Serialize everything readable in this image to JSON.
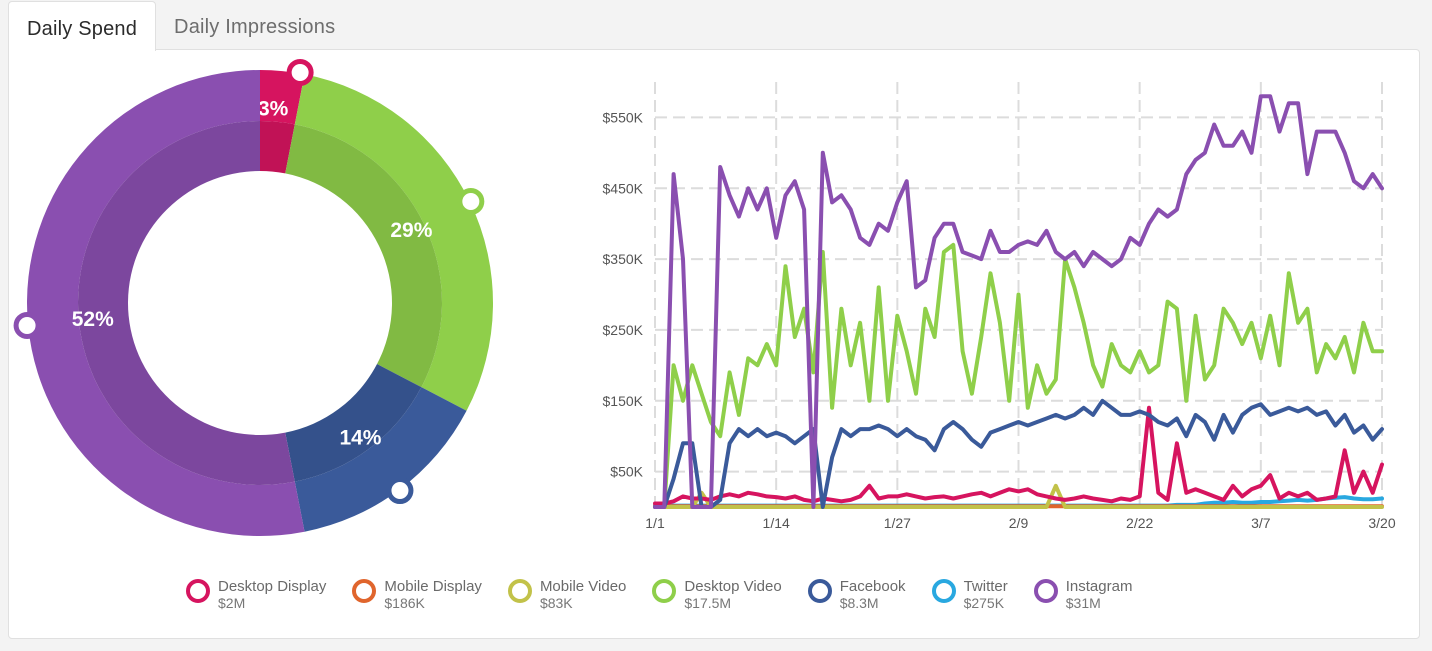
{
  "tabs": [
    {
      "label": "Daily Spend",
      "active": true
    },
    {
      "label": "Daily Impressions",
      "active": false
    }
  ],
  "colors": {
    "desktop_display": "#d6145f",
    "mobile_display": "#e0652d",
    "mobile_video": "#c2c249",
    "desktop_video": "#8fcf4a",
    "facebook": "#3a5a9a",
    "twitter": "#29a8e0",
    "instagram": "#8a4fb0"
  },
  "chart_data": [
    {
      "type": "pie",
      "title": "",
      "slices": [
        {
          "name": "Desktop Display",
          "percent": 3,
          "label": "3%",
          "color": "#d6145f"
        },
        {
          "name": "Desktop Video",
          "percent": 29,
          "label": "29%",
          "color": "#8fcf4a"
        },
        {
          "name": "Facebook",
          "percent": 14,
          "label": "14%",
          "color": "#3a5a9a"
        },
        {
          "name": "Instagram",
          "percent": 52,
          "label": "52%",
          "color": "#8a4fb0"
        }
      ]
    },
    {
      "type": "line",
      "title": "",
      "xlabel": "",
      "ylabel": "",
      "x_range_days": [
        0,
        78
      ],
      "ylim": [
        0,
        600000
      ],
      "x_ticks": [
        {
          "day": 0,
          "label": "1/1"
        },
        {
          "day": 13,
          "label": "1/14"
        },
        {
          "day": 26,
          "label": "1/27"
        },
        {
          "day": 39,
          "label": "2/9"
        },
        {
          "day": 52,
          "label": "2/22"
        },
        {
          "day": 65,
          "label": "3/7"
        },
        {
          "day": 78,
          "label": "3/20"
        }
      ],
      "y_ticks": [
        {
          "value": 50000,
          "label": "$50K"
        },
        {
          "value": 150000,
          "label": "$150K"
        },
        {
          "value": 250000,
          "label": "$250K"
        },
        {
          "value": 350000,
          "label": "$350K"
        },
        {
          "value": 450000,
          "label": "$450K"
        },
        {
          "value": 550000,
          "label": "$550K"
        }
      ],
      "series": [
        {
          "name": "Twitter",
          "color": "#29a8e0",
          "values": [
            2000,
            2000,
            2000,
            2000,
            2000,
            2000,
            2000,
            2000,
            2000,
            2000,
            2000,
            2000,
            2000,
            2000,
            2000,
            2000,
            2000,
            2000,
            2000,
            2000,
            2000,
            2000,
            2000,
            2000,
            2000,
            2000,
            2000,
            2000,
            2000,
            2000,
            2000,
            2000,
            2000,
            2000,
            2000,
            2000,
            2000,
            2000,
            2000,
            2000,
            2000,
            2000,
            2000,
            2000,
            2000,
            2000,
            2000,
            2000,
            2000,
            2000,
            2000,
            2000,
            2000,
            2000,
            2000,
            2000,
            3000,
            3000,
            3000,
            5000,
            6000,
            6000,
            7000,
            6000,
            6000,
            7000,
            7000,
            8000,
            9000,
            10000,
            9000,
            10000,
            12000,
            13000,
            14000,
            12000,
            11000,
            11000,
            12000
          ]
        },
        {
          "name": "Mobile Display",
          "color": "#e0652d",
          "values": [
            1000,
            1000,
            1000,
            1000,
            1000,
            1000,
            1000,
            1000,
            1000,
            1000,
            1000,
            1000,
            1000,
            1000,
            1000,
            1000,
            1000,
            1000,
            1000,
            1000,
            1000,
            1000,
            1000,
            1000,
            1000,
            1000,
            1000,
            1000,
            1000,
            1000,
            1000,
            1000,
            1000,
            1000,
            1000,
            1000,
            1000,
            1000,
            1000,
            1000,
            1000,
            1000,
            1000,
            1000,
            1000,
            1000,
            1000,
            1000,
            1000,
            1000,
            1000,
            1000,
            1000,
            1000,
            1000,
            1000,
            1000,
            1000,
            1000,
            1000,
            1000,
            1000,
            1000,
            1000,
            1000,
            1000,
            1000,
            1000,
            1000,
            1000,
            1000,
            1000,
            1000,
            1000,
            1000,
            1000,
            1000,
            1000,
            1000
          ]
        },
        {
          "name": "Mobile Video",
          "color": "#c2c249",
          "values": [
            0,
            0,
            0,
            0,
            0,
            20000,
            0,
            0,
            0,
            0,
            0,
            0,
            0,
            0,
            0,
            0,
            0,
            0,
            0,
            0,
            0,
            0,
            0,
            0,
            0,
            0,
            0,
            0,
            0,
            0,
            0,
            0,
            0,
            0,
            0,
            0,
            0,
            0,
            0,
            0,
            0,
            0,
            0,
            30000,
            0,
            0,
            0,
            0,
            0,
            0,
            0,
            0,
            0,
            0,
            0,
            0,
            0,
            0,
            0,
            0,
            0,
            0,
            0,
            0,
            0,
            0,
            0,
            0,
            0,
            0,
            0,
            0,
            0,
            0,
            0,
            0,
            0,
            0,
            0
          ]
        },
        {
          "name": "Desktop Display",
          "color": "#d6145f",
          "values": [
            5000,
            5000,
            8000,
            15000,
            12000,
            12000,
            10000,
            15000,
            18000,
            15000,
            20000,
            18000,
            15000,
            14000,
            12000,
            15000,
            10000,
            8000,
            12000,
            10000,
            8000,
            10000,
            15000,
            30000,
            12000,
            15000,
            15000,
            18000,
            15000,
            12000,
            14000,
            15000,
            12000,
            15000,
            18000,
            20000,
            15000,
            20000,
            25000,
            22000,
            25000,
            18000,
            15000,
            12000,
            10000,
            12000,
            15000,
            12000,
            10000,
            8000,
            12000,
            10000,
            15000,
            140000,
            20000,
            10000,
            90000,
            20000,
            25000,
            20000,
            15000,
            10000,
            30000,
            15000,
            25000,
            30000,
            45000,
            12000,
            20000,
            15000,
            20000,
            10000,
            12000,
            15000,
            80000,
            20000,
            50000,
            20000,
            60000
          ]
        },
        {
          "name": "Desktop Video",
          "color": "#8fcf4a",
          "values": [
            0,
            0,
            200000,
            150000,
            200000,
            160000,
            120000,
            100000,
            190000,
            130000,
            210000,
            200000,
            230000,
            200000,
            340000,
            240000,
            280000,
            190000,
            360000,
            140000,
            280000,
            200000,
            260000,
            150000,
            310000,
            150000,
            270000,
            220000,
            160000,
            280000,
            240000,
            360000,
            370000,
            220000,
            160000,
            240000,
            330000,
            260000,
            150000,
            300000,
            140000,
            200000,
            160000,
            180000,
            350000,
            310000,
            260000,
            200000,
            170000,
            230000,
            200000,
            190000,
            220000,
            190000,
            200000,
            290000,
            280000,
            150000,
            270000,
            180000,
            200000,
            280000,
            260000,
            230000,
            260000,
            210000,
            270000,
            200000,
            330000,
            260000,
            280000,
            190000,
            230000,
            210000,
            240000,
            190000,
            260000,
            220000,
            220000
          ]
        },
        {
          "name": "Facebook",
          "color": "#3a5a9a",
          "values": [
            0,
            0,
            40000,
            90000,
            90000,
            0,
            0,
            10000,
            90000,
            110000,
            100000,
            110000,
            100000,
            105000,
            100000,
            90000,
            100000,
            110000,
            0,
            70000,
            110000,
            100000,
            110000,
            110000,
            115000,
            110000,
            100000,
            110000,
            100000,
            95000,
            80000,
            110000,
            120000,
            110000,
            95000,
            85000,
            105000,
            110000,
            115000,
            120000,
            115000,
            120000,
            125000,
            130000,
            125000,
            130000,
            140000,
            130000,
            150000,
            140000,
            130000,
            130000,
            135000,
            130000,
            120000,
            115000,
            125000,
            100000,
            130000,
            120000,
            95000,
            130000,
            105000,
            130000,
            140000,
            145000,
            130000,
            135000,
            140000,
            135000,
            140000,
            130000,
            135000,
            115000,
            130000,
            105000,
            115000,
            95000,
            110000
          ]
        },
        {
          "name": "Instagram",
          "color": "#8a4fb0",
          "values": [
            0,
            0,
            470000,
            350000,
            0,
            0,
            0,
            480000,
            440000,
            410000,
            450000,
            420000,
            450000,
            380000,
            440000,
            460000,
            420000,
            0,
            500000,
            430000,
            440000,
            420000,
            380000,
            370000,
            400000,
            390000,
            430000,
            460000,
            310000,
            320000,
            380000,
            400000,
            400000,
            360000,
            355000,
            350000,
            390000,
            360000,
            360000,
            370000,
            375000,
            370000,
            390000,
            360000,
            350000,
            360000,
            340000,
            360000,
            350000,
            340000,
            350000,
            380000,
            370000,
            400000,
            420000,
            410000,
            420000,
            470000,
            490000,
            500000,
            540000,
            510000,
            510000,
            530000,
            500000,
            580000,
            580000,
            530000,
            570000,
            570000,
            470000,
            530000,
            530000,
            530000,
            500000,
            460000,
            450000,
            470000,
            450000
          ]
        }
      ]
    }
  ],
  "legend": [
    {
      "name": "Desktop Display",
      "value": "$2M",
      "color": "#d6145f"
    },
    {
      "name": "Mobile Display",
      "value": "$186K",
      "color": "#e0652d"
    },
    {
      "name": "Mobile Video",
      "value": "$83K",
      "color": "#c2c249"
    },
    {
      "name": "Desktop Video",
      "value": "$17.5M",
      "color": "#8fcf4a"
    },
    {
      "name": "Facebook",
      "value": "$8.3M",
      "color": "#3a5a9a"
    },
    {
      "name": "Twitter",
      "value": "$275K",
      "color": "#29a8e0"
    },
    {
      "name": "Instagram",
      "value": "$31M",
      "color": "#8a4fb0"
    }
  ]
}
